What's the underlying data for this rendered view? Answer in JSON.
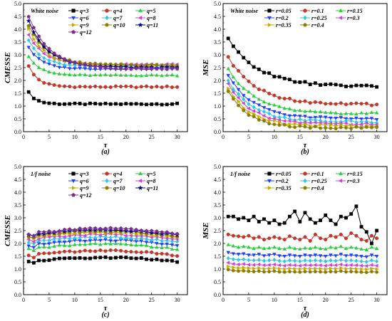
{
  "chart_data": [
    {
      "type": "line",
      "caption": "(a)",
      "ylabel": "CMESSE",
      "xlabel": "τ",
      "xlim": [
        0,
        32
      ],
      "ylim": [
        0,
        5.0
      ],
      "xticks": [
        "0",
        "5",
        "10",
        "15",
        "20",
        "25",
        "30"
      ],
      "yticks": [
        "0.0",
        "0.5",
        "1.0",
        "1.5",
        "2.0",
        "2.5",
        "3.0",
        "3.5",
        "4.0",
        "4.5",
        "5.0"
      ],
      "legend_title": "White noise",
      "legend_cols": 3,
      "series": [
        {
          "name": "q=3",
          "color": "#000000",
          "marker": "square",
          "start": 1.55,
          "end": 1.08,
          "scale_start": 1.0,
          "decay": 1.6
        },
        {
          "name": "q=4",
          "color": "#c0392b",
          "marker": "circle",
          "start": 2.55,
          "end": 1.75,
          "decay": 2.4
        },
        {
          "name": "q=5",
          "color": "#2ecc40",
          "marker": "triangle-up",
          "start": 2.95,
          "end": 2.2,
          "decay": 3.0
        },
        {
          "name": "q=6",
          "color": "#1f3fff",
          "marker": "triangle-down",
          "start": 3.3,
          "end": 2.45,
          "decay": 3.5
        },
        {
          "name": "q=7",
          "color": "#2ec7e0",
          "marker": "diamond",
          "start": 3.55,
          "end": 2.55,
          "decay": 4.0
        },
        {
          "name": "q=8",
          "color": "#d23fd2",
          "marker": "triangle-left",
          "start": 3.8,
          "end": 2.62,
          "decay": 4.5
        },
        {
          "name": "q=9",
          "color": "#c8a800",
          "marker": "triangle-right",
          "start": 4.0,
          "end": 2.58,
          "decay": 5.0
        },
        {
          "name": "q=10",
          "color": "#8b7d00",
          "marker": "hexagon",
          "start": 4.15,
          "end": 2.6,
          "decay": 5.5
        },
        {
          "name": "q=11",
          "color": "#000080",
          "marker": "star",
          "start": 4.3,
          "end": 2.5,
          "decay": 6.0
        },
        {
          "name": "q=12",
          "color": "#7b2d8f",
          "marker": "pentagon",
          "start": 4.5,
          "end": 2.45,
          "decay": 6.5
        }
      ]
    },
    {
      "type": "line",
      "caption": "(b)",
      "ylabel": "MSE",
      "xlabel": "τ",
      "xlim": [
        0,
        32
      ],
      "ylim": [
        0,
        5.0
      ],
      "xticks": [
        "0",
        "5",
        "10",
        "15",
        "20",
        "25",
        "30"
      ],
      "yticks": [
        "0.0",
        "0.5",
        "1.0",
        "1.5",
        "2.0",
        "2.5",
        "3.0",
        "3.5",
        "4.0",
        "4.5",
        "5.0"
      ],
      "legend_title": "White noise",
      "legend_cols": 3,
      "series": [
        {
          "name": "r=0.05",
          "color": "#000000",
          "marker": "square",
          "start": 3.6,
          "end": 1.75,
          "decay": 10.0
        },
        {
          "name": "r=0.1",
          "color": "#c0392b",
          "marker": "circle",
          "start": 2.9,
          "end": 1.05,
          "decay": 9.0
        },
        {
          "name": "r=0.15",
          "color": "#2ecc40",
          "marker": "triangle-up",
          "start": 2.45,
          "end": 0.7,
          "decay": 8.5
        },
        {
          "name": "r=0.2",
          "color": "#1f3fff",
          "marker": "triangle-down",
          "start": 2.2,
          "end": 0.5,
          "decay": 8.0
        },
        {
          "name": "r=0.25",
          "color": "#2ec7e0",
          "marker": "diamond",
          "start": 2.0,
          "end": 0.38,
          "decay": 7.5
        },
        {
          "name": "r=0.3",
          "color": "#d23fd2",
          "marker": "triangle-left",
          "start": 1.85,
          "end": 0.3,
          "decay": 7.0
        },
        {
          "name": "r=0.35",
          "color": "#c8a800",
          "marker": "triangle-right",
          "start": 1.72,
          "end": 0.22,
          "decay": 6.5
        },
        {
          "name": "r=0.4",
          "color": "#8b7d00",
          "marker": "hexagon",
          "start": 1.6,
          "end": 0.15,
          "decay": 6.0
        }
      ]
    },
    {
      "type": "line",
      "caption": "(c)",
      "ylabel": "CMESSE",
      "xlabel": "τ",
      "xlim": [
        0,
        32
      ],
      "ylim": [
        0,
        5.0
      ],
      "xticks": [
        "0",
        "5",
        "10",
        "15",
        "20",
        "25",
        "30"
      ],
      "yticks": [
        "0.0",
        "0.5",
        "1.0",
        "1.5",
        "2.0",
        "2.5",
        "3.0",
        "3.5",
        "4.0",
        "4.5",
        "5.0"
      ],
      "legend_title": "1/f noise",
      "legend_cols": 3,
      "series": [
        {
          "name": "q=3",
          "color": "#000000",
          "marker": "square",
          "base": 1.35,
          "amp": 0.15
        },
        {
          "name": "q=4",
          "color": "#c0392b",
          "marker": "circle",
          "base": 1.6,
          "amp": 0.18
        },
        {
          "name": "q=5",
          "color": "#2ecc40",
          "marker": "triangle-up",
          "base": 1.85,
          "amp": 0.2
        },
        {
          "name": "q=6",
          "color": "#1f3fff",
          "marker": "triangle-down",
          "base": 2.0,
          "amp": 0.2
        },
        {
          "name": "q=7",
          "color": "#2ec7e0",
          "marker": "diamond",
          "base": 2.12,
          "amp": 0.2
        },
        {
          "name": "q=8",
          "color": "#d23fd2",
          "marker": "triangle-left",
          "base": 2.22,
          "amp": 0.2
        },
        {
          "name": "q=9",
          "color": "#c8a800",
          "marker": "triangle-right",
          "base": 2.3,
          "amp": 0.2
        },
        {
          "name": "q=10",
          "color": "#8b7d00",
          "marker": "hexagon",
          "base": 2.35,
          "amp": 0.2
        },
        {
          "name": "q=11",
          "color": "#000080",
          "marker": "star",
          "base": 2.4,
          "amp": 0.2
        },
        {
          "name": "q=12",
          "color": "#7b2d8f",
          "marker": "pentagon",
          "base": 2.45,
          "amp": 0.2
        }
      ]
    },
    {
      "type": "line",
      "caption": "(d)",
      "ylabel": "MSE",
      "xlabel": "τ",
      "xlim": [
        0,
        32
      ],
      "ylim": [
        0,
        5.0
      ],
      "xticks": [
        "0",
        "5",
        "10",
        "15",
        "20",
        "25",
        "30"
      ],
      "yticks": [
        "0.0",
        "0.5",
        "1.0",
        "1.5",
        "2.0",
        "2.5",
        "3.0",
        "3.5",
        "4.0",
        "4.5",
        "5.0"
      ],
      "legend_title": "1/f noise",
      "legend_cols": 3,
      "series": [
        {
          "name": "r=0.05",
          "color": "#000000",
          "marker": "square",
          "values": [
            3.05,
            3.05,
            2.95,
            3.0,
            2.9,
            3.05,
            2.85,
            2.95,
            2.8,
            2.9,
            2.75,
            2.8,
            3.05,
            3.25,
            2.85,
            3.2,
            2.95,
            2.8,
            2.9,
            3.1,
            2.9,
            2.75,
            3.05,
            3.0,
            3.15,
            3.45,
            2.65,
            2.45,
            2.0,
            2.5
          ]
        },
        {
          "name": "r=0.1",
          "color": "#c0392b",
          "marker": "circle",
          "values": [
            2.35,
            2.3,
            2.28,
            2.25,
            2.3,
            2.2,
            2.25,
            2.15,
            2.2,
            2.25,
            2.2,
            2.15,
            2.28,
            2.2,
            2.15,
            2.25,
            2.1,
            2.35,
            2.2,
            2.15,
            2.3,
            2.25,
            2.35,
            2.2,
            2.4,
            2.3,
            2.15,
            2.1,
            2.3,
            2.2
          ]
        },
        {
          "name": "r=0.15",
          "color": "#2ecc40",
          "marker": "triangle-up",
          "values": [
            1.95,
            1.9,
            1.85,
            1.88,
            1.85,
            1.8,
            1.85,
            1.8,
            1.82,
            1.85,
            1.8,
            1.78,
            1.85,
            1.8,
            1.78,
            1.82,
            1.8,
            1.85,
            1.8,
            1.78,
            1.85,
            1.82,
            1.88,
            1.8,
            1.85,
            1.82,
            1.78,
            1.75,
            1.85,
            1.8
          ]
        },
        {
          "name": "r=0.2",
          "color": "#1f3fff",
          "marker": "triangle-down",
          "values": [
            1.65,
            1.6,
            1.58,
            1.6,
            1.55,
            1.55,
            1.58,
            1.52,
            1.55,
            1.58,
            1.52,
            1.5,
            1.55,
            1.52,
            1.5,
            1.55,
            1.52,
            1.55,
            1.52,
            1.5,
            1.55,
            1.52,
            1.58,
            1.52,
            1.55,
            1.52,
            1.5,
            1.48,
            1.55,
            1.5
          ]
        },
        {
          "name": "r=0.25",
          "color": "#2ec7e0",
          "marker": "diamond",
          "values": [
            1.42,
            1.38,
            1.36,
            1.38,
            1.35,
            1.34,
            1.36,
            1.32,
            1.34,
            1.36,
            1.32,
            1.3,
            1.34,
            1.32,
            1.3,
            1.34,
            1.32,
            1.34,
            1.32,
            1.3,
            1.34,
            1.32,
            1.36,
            1.32,
            1.34,
            1.32,
            1.3,
            1.28,
            1.34,
            1.3
          ]
        },
        {
          "name": "r=0.3",
          "color": "#d23fd2",
          "marker": "triangle-left",
          "values": [
            1.25,
            1.2,
            1.18,
            1.2,
            1.17,
            1.16,
            1.18,
            1.15,
            1.16,
            1.18,
            1.15,
            1.13,
            1.16,
            1.15,
            1.13,
            1.16,
            1.15,
            1.16,
            1.15,
            1.13,
            1.16,
            1.15,
            1.18,
            1.15,
            1.16,
            1.15,
            1.13,
            1.12,
            1.16,
            1.13
          ]
        },
        {
          "name": "r=0.35",
          "color": "#c8a800",
          "marker": "triangle-right",
          "values": [
            1.1,
            1.06,
            1.04,
            1.05,
            1.03,
            1.02,
            1.04,
            1.01,
            1.02,
            1.04,
            1.01,
            1.0,
            1.02,
            1.01,
            1.0,
            1.02,
            1.01,
            1.02,
            1.01,
            1.0,
            1.02,
            1.01,
            1.04,
            1.01,
            1.02,
            1.01,
            1.0,
            0.99,
            1.02,
            1.0
          ]
        },
        {
          "name": "r=0.4",
          "color": "#8b7d00",
          "marker": "hexagon",
          "values": [
            0.98,
            0.94,
            0.92,
            0.93,
            0.91,
            0.9,
            0.92,
            0.89,
            0.9,
            0.92,
            0.89,
            0.88,
            0.9,
            0.89,
            0.88,
            0.9,
            0.89,
            0.9,
            0.89,
            0.88,
            0.9,
            0.89,
            0.92,
            0.89,
            0.9,
            0.89,
            0.88,
            0.87,
            0.9,
            0.88
          ]
        }
      ]
    }
  ]
}
